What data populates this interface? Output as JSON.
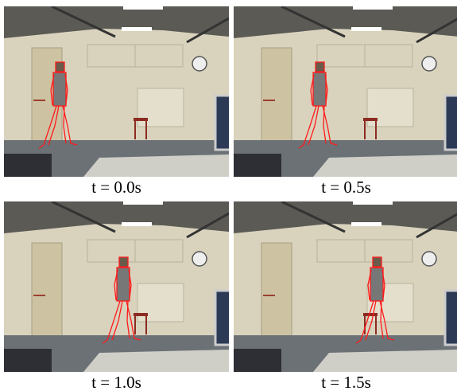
{
  "panels": [
    {
      "caption": "t = 0.0s"
    },
    {
      "caption": "t = 0.5s"
    },
    {
      "caption": "t = 1.0s"
    },
    {
      "caption": "t = 1.5s"
    }
  ]
}
